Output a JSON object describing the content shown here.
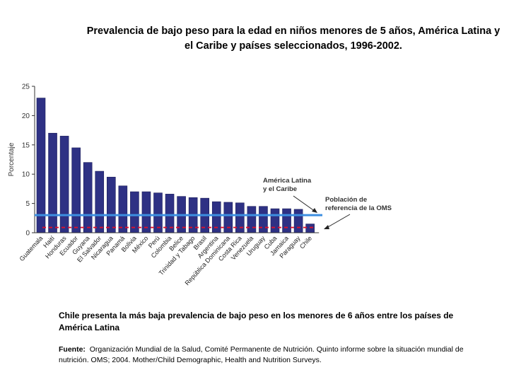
{
  "slide": {
    "title": "Prevalencia de bajo peso para la edad en niños menores de 5 años, América Latina y el Caribe y países seleccionados, 1996-2002.",
    "conclusion": "Chile presenta la más baja prevalencia de bajo peso en los menores de 6 años entre los países de América Latina",
    "source_label": "Fuente:",
    "source_text": "Organización Mundial de la Salud, Comité Permanente de Nutrición.  Quinto informe sobre la situación mundial de nutrición. OMS; 2004.  Mother/Child Demographic, Health and Nutrition Surveys."
  },
  "chart_data": {
    "type": "bar",
    "title": "",
    "ylabel": "Porcentaje",
    "xlabel": "",
    "ylim": [
      0,
      25
    ],
    "yticks": [
      0,
      5,
      10,
      15,
      20,
      25
    ],
    "grid": false,
    "categories": [
      "Guatemala",
      "Haití",
      "Honduras",
      "Ecuador",
      "Guyana",
      "El Salvador",
      "Nicaragua",
      "Panamá",
      "Bolivia",
      "México",
      "Perú",
      "Colombia",
      "Belice",
      "Trinidad y Tabago",
      "Brasil",
      "Argentina",
      "República Dominicana",
      "Costa Rica",
      "Venezuela",
      "Uruguay",
      "Cuba",
      "Jamaica",
      "Paraguay",
      "Chile"
    ],
    "values": [
      23,
      17,
      16.5,
      14.5,
      12,
      10.5,
      9.5,
      8,
      7,
      7,
      6.8,
      6.6,
      6.2,
      6,
      5.9,
      5.3,
      5.2,
      5.1,
      4.5,
      4.5,
      4.1,
      4.1,
      4,
      1.5
    ],
    "bar_color": "#2e3184",
    "reference_lines": [
      {
        "name": "América Latina y el Caribe",
        "value": 3,
        "color": "#3d8fe0",
        "style": "solid"
      },
      {
        "name": "Población de referencia de la OMS",
        "value": 0.9,
        "color": "#e0102a",
        "style": "dashed"
      }
    ],
    "annotations": [
      {
        "lines": [
          "América Latina",
          "y el Caribe"
        ]
      },
      {
        "lines": [
          "Población de",
          "referencia de la OMS"
        ]
      }
    ]
  }
}
